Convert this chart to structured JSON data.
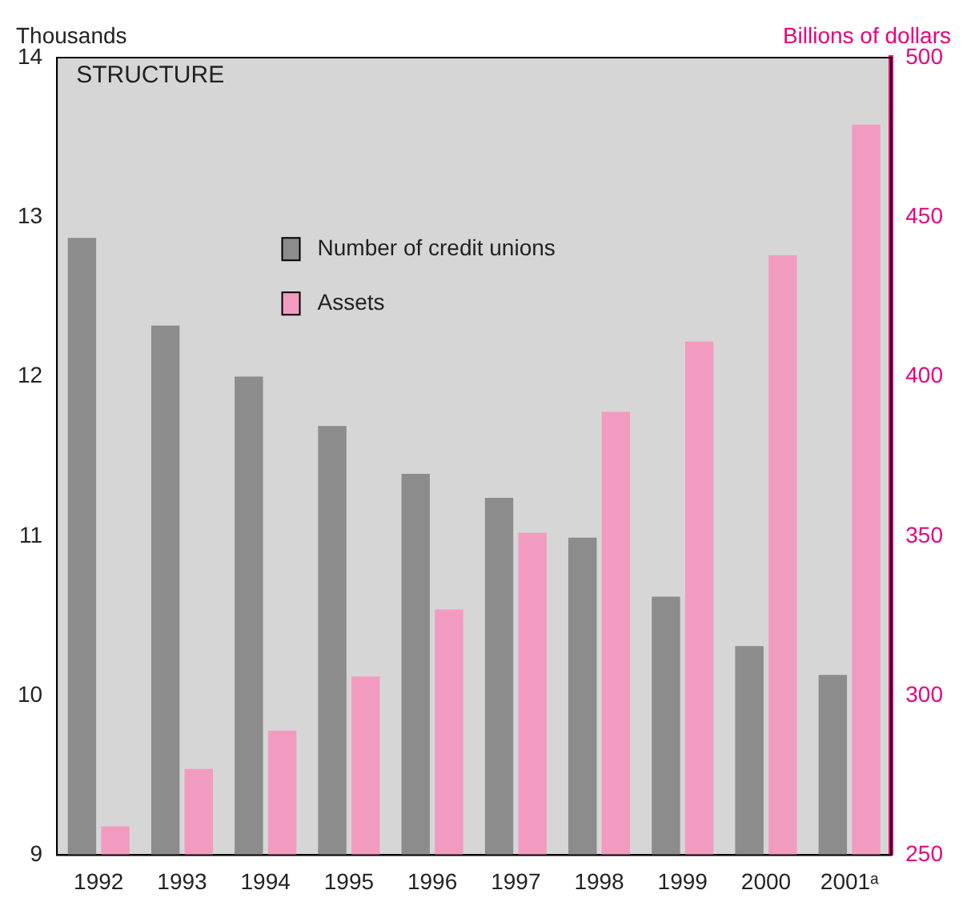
{
  "chart_data": {
    "type": "bar",
    "ylabel": "Thousands",
    "y2label": "Billions of dollars",
    "annotations": [
      "STRUCTURE"
    ],
    "categories": [
      "1992",
      "1993",
      "1994",
      "1995",
      "1996",
      "1997",
      "1998",
      "1999",
      "2000",
      "2001ᵃ"
    ],
    "series": [
      {
        "name": "Number of credit unions",
        "color": "#8c8c8c",
        "values": [
          12.87,
          12.32,
          12.0,
          11.69,
          11.39,
          11.24,
          10.99,
          10.62,
          10.31,
          10.13
        ]
      },
      {
        "name": "Assets",
        "color": "#f29bc1",
        "axis": "y2",
        "values": [
          259,
          277,
          289,
          306,
          327,
          351,
          389,
          411,
          438,
          479
        ]
      }
    ],
    "ylim": [
      9,
      14
    ],
    "yticks": [
      9,
      10,
      11,
      12,
      13,
      14
    ],
    "y2lim": [
      250,
      500
    ],
    "y2ticks": [
      250,
      300,
      350,
      400,
      450,
      500
    ],
    "grid": false,
    "legend": "top left"
  }
}
